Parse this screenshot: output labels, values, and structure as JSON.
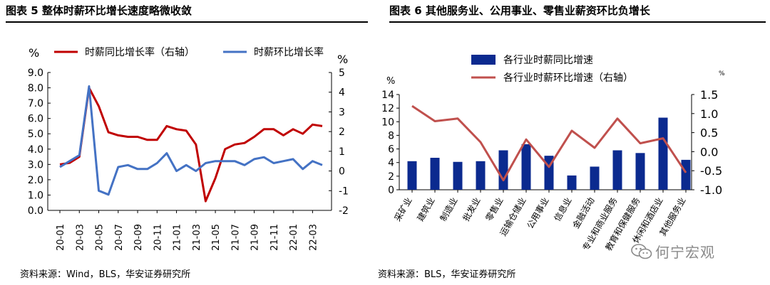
{
  "chart_data": [
    {
      "type": "line",
      "title": "图表 5 整体时薪环比增长速度略微收敛",
      "source": "资料来源：Wind，BLS，华安证券研究所",
      "left_axis_unit": "%",
      "right_axis_unit": "%",
      "ylim_left": [
        0,
        9
      ],
      "ylim_right": [
        -2,
        5
      ],
      "left_ticks": [
        "0.0",
        "1.0",
        "2.0",
        "3.0",
        "4.0",
        "5.0",
        "6.0",
        "7.0",
        "8.0",
        "9.0"
      ],
      "right_ticks": [
        "-2",
        "-1",
        "0",
        "1",
        "2",
        "3",
        "4",
        "5"
      ],
      "x_tick_labels": [
        "20-01",
        "20-03",
        "20-05",
        "20-07",
        "20-09",
        "20-11",
        "21-01",
        "21-03",
        "21-05",
        "21-07",
        "21-09",
        "21-11",
        "22-01",
        "22-03"
      ],
      "series": [
        {
          "name": "时薪同比增长率（右轴）",
          "axis": "left",
          "color": "#c00000",
          "values": [
            3.0,
            3.1,
            3.5,
            8.0,
            6.8,
            5.1,
            4.9,
            4.8,
            4.8,
            4.6,
            4.6,
            5.5,
            5.3,
            5.2,
            4.3,
            0.6,
            2.1,
            4.0,
            4.3,
            4.4,
            4.8,
            5.3,
            5.3,
            4.9,
            5.3,
            5.0,
            5.6,
            5.5
          ]
        },
        {
          "name": "时薪环比增长率",
          "axis": "right",
          "color": "#4472c4",
          "values": [
            0.2,
            0.5,
            0.8,
            4.3,
            -1.0,
            -1.2,
            0.2,
            0.3,
            0.1,
            0.1,
            0.4,
            0.9,
            0.0,
            0.3,
            0.0,
            0.4,
            0.5,
            0.5,
            0.5,
            0.3,
            0.6,
            0.7,
            0.4,
            0.5,
            0.6,
            0.1,
            0.5,
            0.3
          ]
        }
      ]
    },
    {
      "type": "bar",
      "title": "图表 6 其他服务业、公用事业、零售业薪资环比负增长",
      "source": "资料来源：BLS，华安证券研究所",
      "left_axis_unit": "%",
      "right_axis_unit": "%",
      "ylim_left": [
        0,
        14
      ],
      "ylim_right": [
        -1.0,
        1.5
      ],
      "left_ticks": [
        "0",
        "2",
        "4",
        "6",
        "8",
        "10",
        "12",
        "14"
      ],
      "right_ticks": [
        "-1.0",
        "-0.5",
        "0.0",
        "0.5",
        "1.0",
        "1.5"
      ],
      "categories": [
        "采矿业",
        "建筑业",
        "制造业",
        "批发业",
        "零售业",
        "运输仓储业",
        "公用事业",
        "信息业",
        "金融活动",
        "专业和商业服务",
        "教育和保健服务",
        "休闲和酒店业",
        "其他服务业"
      ],
      "series": [
        {
          "name": "各行业时薪同比增速",
          "type": "bar",
          "axis": "left",
          "color": "#0b2a8f",
          "values": [
            4.2,
            4.7,
            4.1,
            4.2,
            5.8,
            6.7,
            5.0,
            2.1,
            3.4,
            5.8,
            5.4,
            10.6,
            4.4
          ]
        },
        {
          "name": "各行业时薪环比增速（右轴）",
          "type": "line",
          "axis": "right",
          "color": "#c0504d",
          "values": [
            1.2,
            0.8,
            0.87,
            0.25,
            -0.75,
            0.32,
            -0.4,
            0.55,
            0.1,
            0.87,
            0.22,
            0.35,
            -0.55
          ]
        }
      ]
    }
  ],
  "watermark": "何宁宏观"
}
